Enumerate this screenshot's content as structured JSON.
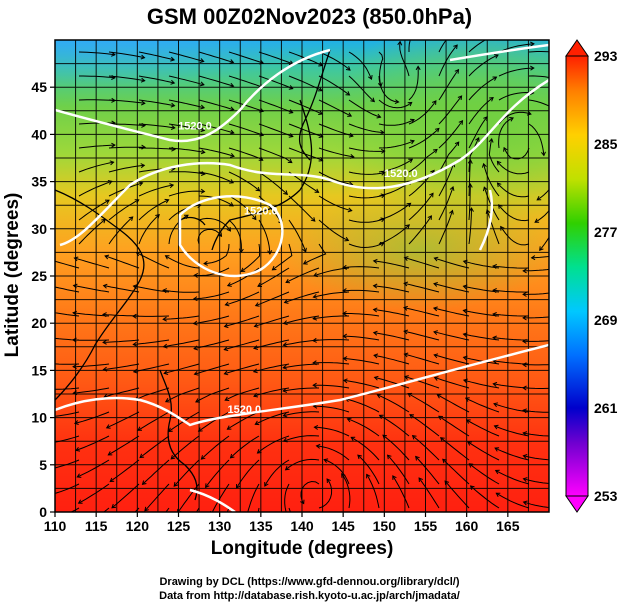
{
  "title": "GSM 00Z02Nov2023 (850.0hPa)",
  "x_axis": {
    "label": "Longitude (degrees)",
    "min": 110,
    "max": 170,
    "ticks": [
      110,
      115,
      120,
      125,
      130,
      135,
      140,
      145,
      150,
      155,
      160,
      165
    ]
  },
  "y_axis": {
    "label": "Latitude  (degrees)",
    "min": 0,
    "max": 50,
    "ticks": [
      0,
      5,
      10,
      15,
      20,
      25,
      30,
      35,
      40,
      45
    ]
  },
  "colorbar": {
    "min": 253,
    "max": 293,
    "ticks": [
      293,
      285,
      277,
      269,
      261,
      253
    ],
    "colors": [
      "#ff00ff",
      "#0000cc",
      "#0070ff",
      "#00c8ff",
      "#00e090",
      "#30d000",
      "#c0e000",
      "#ffd000",
      "#ff8000",
      "#ff2000"
    ]
  },
  "contour_labels": [
    {
      "text": "1520.0",
      "lon": 133,
      "lat": 10.5
    },
    {
      "text": "1520.0",
      "lon": 152,
      "lat": 35.5
    },
    {
      "text": "1520.0",
      "lon": 135,
      "lat": 31.5
    },
    {
      "text": "1520.0",
      "lon": 127,
      "lat": 40.5
    }
  ],
  "credits": {
    "line1": "Drawing by DCL (https://www.gfd-dennou.org/library/dcl/)",
    "line2": "Data from http://database.rish.kyoto-u.ac.jp/arch/jmadata/"
  }
}
